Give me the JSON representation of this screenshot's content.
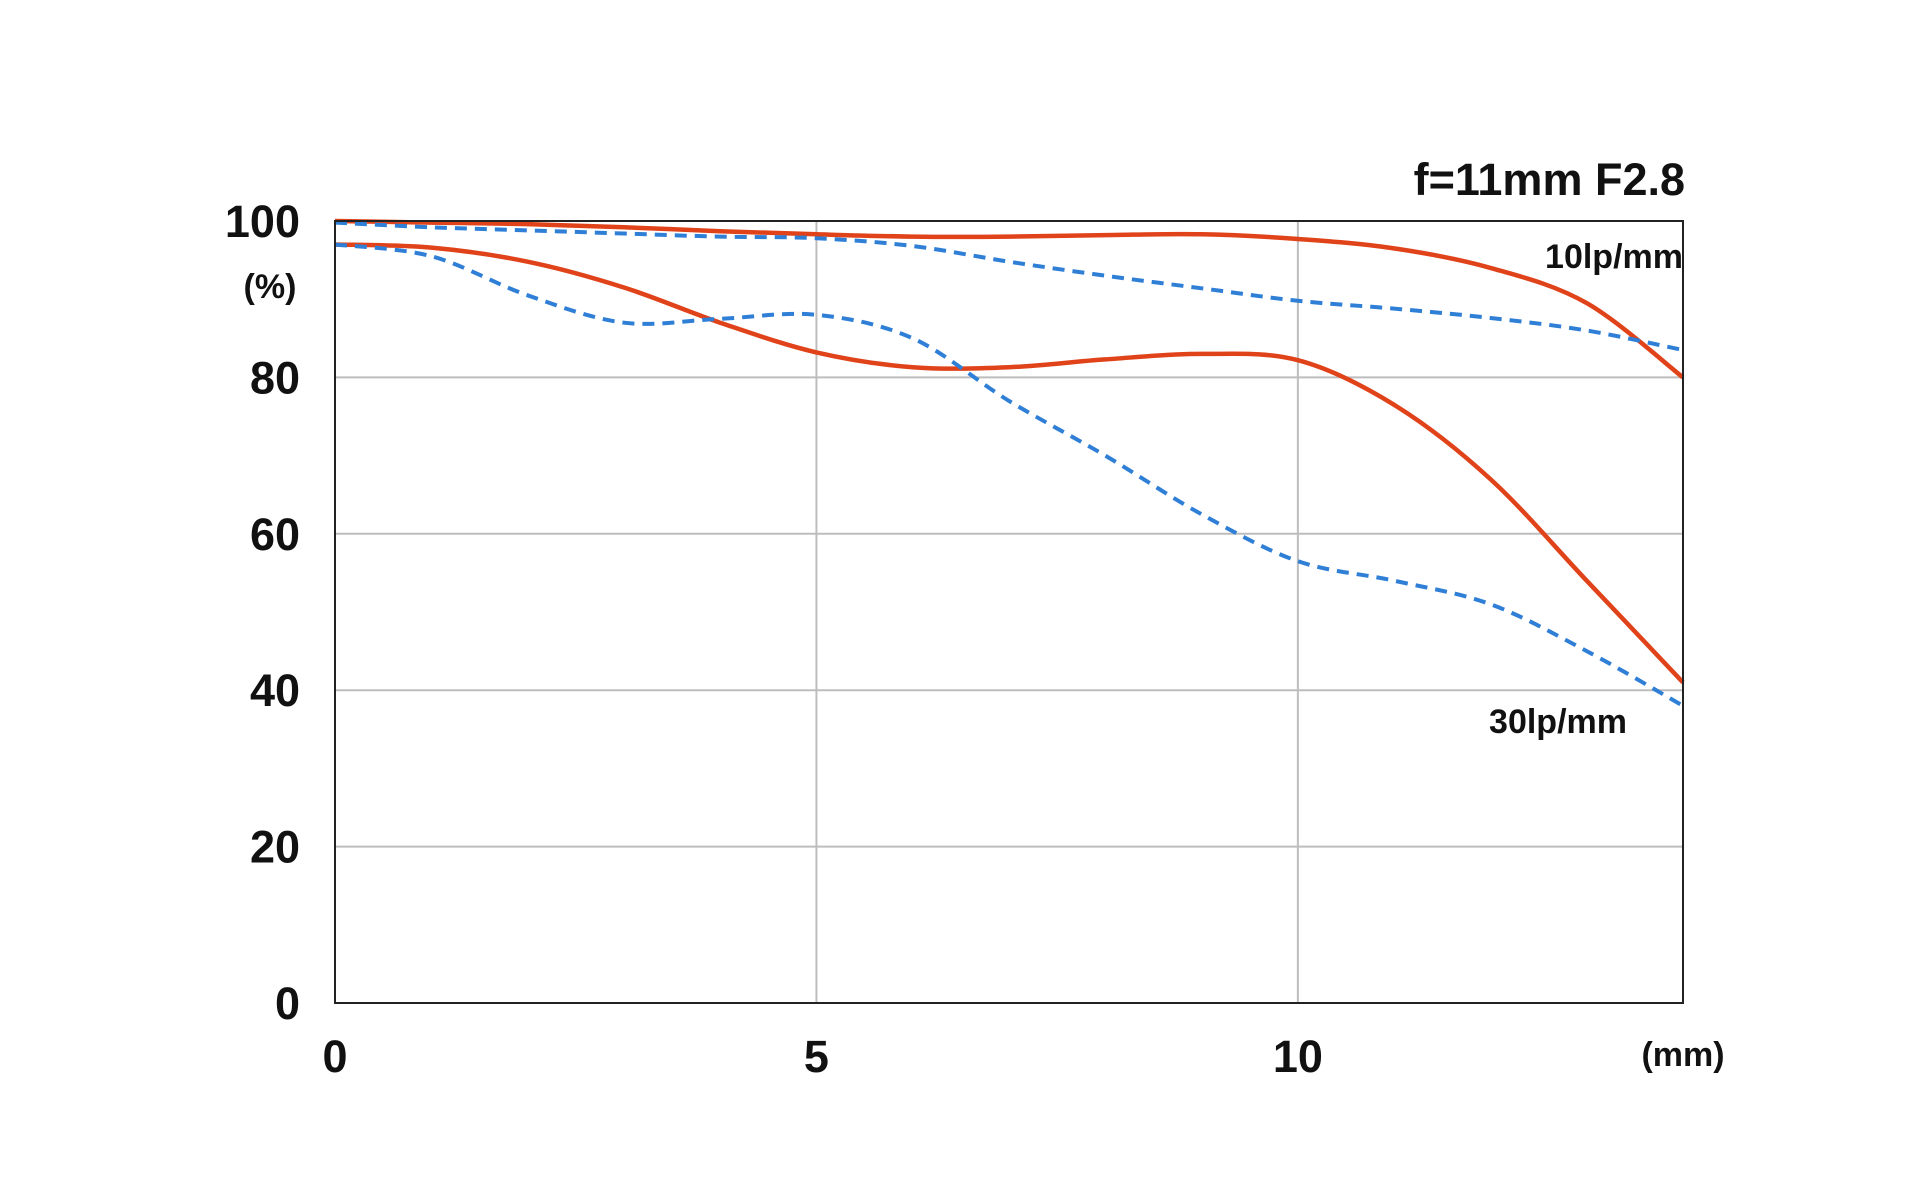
{
  "chart_data": {
    "type": "line",
    "title": "f=11mm F2.8",
    "ylabel": "(%)",
    "xunit": "(mm)",
    "xlim": [
      0,
      14
    ],
    "ylim": [
      0,
      100
    ],
    "xticks": [
      "0",
      "5",
      "10"
    ],
    "xtick_values": [
      0,
      5,
      10
    ],
    "yticks": [
      "0",
      "20",
      "40",
      "60",
      "80",
      "100"
    ],
    "ytick_values": [
      0,
      20,
      40,
      60,
      80,
      100
    ],
    "grid": true,
    "annotations": [
      "10lp/mm",
      "30lp/mm"
    ],
    "colors": {
      "sagittal": "#e0431a",
      "meridional": "#2f7fd6",
      "grid": "#bdbdbd",
      "axis": "#222222"
    },
    "series": [
      {
        "frequency": "10lp/mm",
        "style": "solid",
        "color": "#e0431a",
        "x": [
          0,
          1,
          2,
          3,
          4,
          5,
          6,
          7,
          8,
          9,
          10,
          11,
          12,
          13,
          14
        ],
        "y": [
          100,
          99.8,
          99.6,
          99.2,
          98.7,
          98.3,
          98.0,
          98.0,
          98.2,
          98.3,
          97.7,
          96.5,
          94.0,
          89.5,
          80.0
        ]
      },
      {
        "frequency": "10lp/mm",
        "style": "dashed",
        "color": "#2f7fd6",
        "x": [
          0,
          1,
          2,
          3,
          4,
          5,
          6,
          7,
          8,
          9,
          10,
          11,
          12,
          13,
          14
        ],
        "y": [
          99.8,
          99.2,
          98.8,
          98.4,
          98.0,
          97.8,
          96.8,
          94.8,
          93.0,
          91.4,
          89.8,
          88.8,
          87.6,
          86.0,
          83.5
        ]
      },
      {
        "frequency": "30lp/mm",
        "style": "solid",
        "color": "#e0431a",
        "x": [
          0,
          1,
          2,
          3,
          4,
          5,
          6,
          7,
          8,
          9,
          10,
          11,
          12,
          13,
          14
        ],
        "y": [
          97.0,
          96.6,
          94.8,
          91.5,
          87.0,
          83.2,
          81.3,
          81.3,
          82.3,
          83.0,
          82.2,
          76.5,
          67.0,
          54.0,
          41.0
        ]
      },
      {
        "frequency": "30lp/mm",
        "style": "dashed",
        "color": "#2f7fd6",
        "x": [
          0,
          1,
          2,
          3,
          4,
          5,
          6,
          7,
          8,
          9,
          10,
          11,
          12,
          13,
          14
        ],
        "y": [
          97.0,
          95.5,
          90.5,
          87.0,
          87.5,
          88.0,
          85.0,
          77.0,
          70.0,
          62.5,
          56.5,
          54.0,
          51.0,
          45.0,
          38.0
        ]
      }
    ]
  }
}
